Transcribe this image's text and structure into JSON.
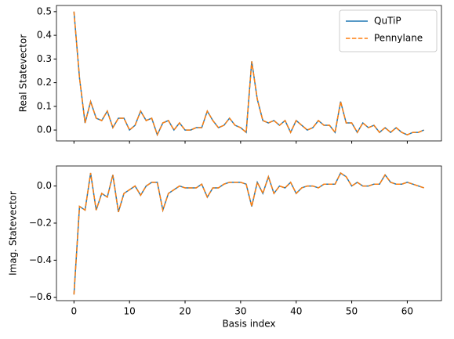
{
  "chart_data": [
    {
      "type": "line",
      "ylabel": "Real Statevector",
      "x": [
        0,
        1,
        2,
        3,
        4,
        5,
        6,
        7,
        8,
        9,
        10,
        11,
        12,
        13,
        14,
        15,
        16,
        17,
        18,
        19,
        20,
        21,
        22,
        23,
        24,
        25,
        26,
        27,
        28,
        29,
        30,
        31,
        32,
        33,
        34,
        35,
        36,
        37,
        38,
        39,
        40,
        41,
        42,
        43,
        44,
        45,
        46,
        47,
        48,
        49,
        50,
        51,
        52,
        53,
        54,
        55,
        56,
        57,
        58,
        59,
        60,
        61,
        62,
        63
      ],
      "series": [
        {
          "name": "QuTiP",
          "color": "#1f77b4",
          "linestyle": "solid",
          "values": [
            0.5,
            0.22,
            0.03,
            0.12,
            0.05,
            0.04,
            0.08,
            0.01,
            0.05,
            0.05,
            0.0,
            0.02,
            0.08,
            0.04,
            0.05,
            -0.02,
            0.03,
            0.04,
            0.0,
            0.03,
            0.0,
            0.0,
            0.01,
            0.01,
            0.08,
            0.04,
            0.01,
            0.02,
            0.05,
            0.02,
            0.01,
            -0.01,
            0.29,
            0.13,
            0.04,
            0.03,
            0.04,
            0.02,
            0.04,
            -0.01,
            0.04,
            0.02,
            0.0,
            0.01,
            0.04,
            0.02,
            0.02,
            -0.01,
            0.12,
            0.03,
            0.03,
            -0.01,
            0.03,
            0.01,
            0.02,
            -0.01,
            0.01,
            -0.01,
            0.01,
            -0.01,
            -0.02,
            -0.01,
            -0.01,
            0.0
          ]
        },
        {
          "name": "Pennylane",
          "color": "#ff7f0e",
          "linestyle": "dashed",
          "values": [
            0.5,
            0.22,
            0.03,
            0.12,
            0.05,
            0.04,
            0.08,
            0.01,
            0.05,
            0.05,
            0.0,
            0.02,
            0.08,
            0.04,
            0.05,
            -0.02,
            0.03,
            0.04,
            0.0,
            0.03,
            0.0,
            0.0,
            0.01,
            0.01,
            0.08,
            0.04,
            0.01,
            0.02,
            0.05,
            0.02,
            0.01,
            -0.01,
            0.29,
            0.13,
            0.04,
            0.03,
            0.04,
            0.02,
            0.04,
            -0.01,
            0.04,
            0.02,
            0.0,
            0.01,
            0.04,
            0.02,
            0.02,
            -0.01,
            0.12,
            0.03,
            0.03,
            -0.01,
            0.03,
            0.01,
            0.02,
            -0.01,
            0.01,
            -0.01,
            0.01,
            -0.01,
            -0.02,
            -0.01,
            -0.01,
            0.0
          ]
        }
      ],
      "xlim": [
        -3.15,
        66.15
      ],
      "ylim": [
        -0.046,
        0.526
      ],
      "yticks": [
        {
          "value": 0,
          "label": "0.0"
        },
        0.1,
        0.2,
        0.3,
        0.4,
        0.5
      ],
      "legend": "upper right"
    },
    {
      "type": "line",
      "ylabel": "Imag. Statevector",
      "xlabel": "Basis index",
      "x": [
        0,
        1,
        2,
        3,
        4,
        5,
        6,
        7,
        8,
        9,
        10,
        11,
        12,
        13,
        14,
        15,
        16,
        17,
        18,
        19,
        20,
        21,
        22,
        23,
        24,
        25,
        26,
        27,
        28,
        29,
        30,
        31,
        32,
        33,
        34,
        35,
        36,
        37,
        38,
        39,
        40,
        41,
        42,
        43,
        44,
        45,
        46,
        47,
        48,
        49,
        50,
        51,
        52,
        53,
        54,
        55,
        56,
        57,
        58,
        59,
        60,
        61,
        62,
        63
      ],
      "series": [
        {
          "name": "QuTiP",
          "color": "#1f77b4",
          "linestyle": "solid",
          "values": [
            -0.585,
            -0.11,
            -0.13,
            0.07,
            -0.13,
            -0.04,
            -0.06,
            0.06,
            -0.14,
            -0.04,
            -0.02,
            0.0,
            -0.05,
            0.0,
            0.02,
            0.02,
            -0.13,
            -0.04,
            -0.02,
            0.0,
            -0.01,
            -0.01,
            -0.01,
            0.01,
            -0.06,
            -0.01,
            -0.01,
            0.01,
            0.02,
            0.02,
            0.02,
            0.01,
            -0.11,
            0.02,
            -0.04,
            0.05,
            -0.04,
            0.0,
            -0.01,
            0.02,
            -0.04,
            -0.01,
            0.0,
            0.0,
            -0.01,
            0.01,
            0.01,
            0.01,
            0.07,
            0.05,
            0.0,
            0.02,
            0.0,
            0.0,
            0.01,
            0.01,
            0.06,
            0.02,
            0.01,
            0.01,
            0.02,
            0.01,
            0.0,
            -0.01
          ]
        },
        {
          "name": "Pennylane",
          "color": "#ff7f0e",
          "linestyle": "dashed",
          "values": [
            -0.585,
            -0.11,
            -0.13,
            0.07,
            -0.13,
            -0.04,
            -0.06,
            0.06,
            -0.14,
            -0.04,
            -0.02,
            0.0,
            -0.05,
            0.0,
            0.02,
            0.02,
            -0.13,
            -0.04,
            -0.02,
            0.0,
            -0.01,
            -0.01,
            -0.01,
            0.01,
            -0.06,
            -0.01,
            -0.01,
            0.01,
            0.02,
            0.02,
            0.02,
            0.01,
            -0.11,
            0.02,
            -0.04,
            0.05,
            -0.04,
            0.0,
            -0.01,
            0.02,
            -0.04,
            -0.01,
            0.0,
            0.0,
            -0.01,
            0.01,
            0.01,
            0.01,
            0.07,
            0.05,
            0.0,
            0.02,
            0.0,
            0.0,
            0.01,
            0.01,
            0.06,
            0.02,
            0.01,
            0.01,
            0.02,
            0.01,
            0.0,
            -0.01
          ]
        }
      ],
      "xlim": [
        -3.15,
        66.15
      ],
      "ylim": [
        -0.618,
        0.108
      ],
      "xticks": [
        0,
        10,
        20,
        30,
        40,
        50,
        60
      ],
      "yticks": [
        {
          "value": 0,
          "label": "0.0"
        },
        {
          "value": -0.2,
          "label": "−0.2"
        },
        {
          "value": -0.4,
          "label": "−0.4"
        },
        {
          "value": -0.6,
          "label": "−0.6"
        }
      ]
    }
  ]
}
